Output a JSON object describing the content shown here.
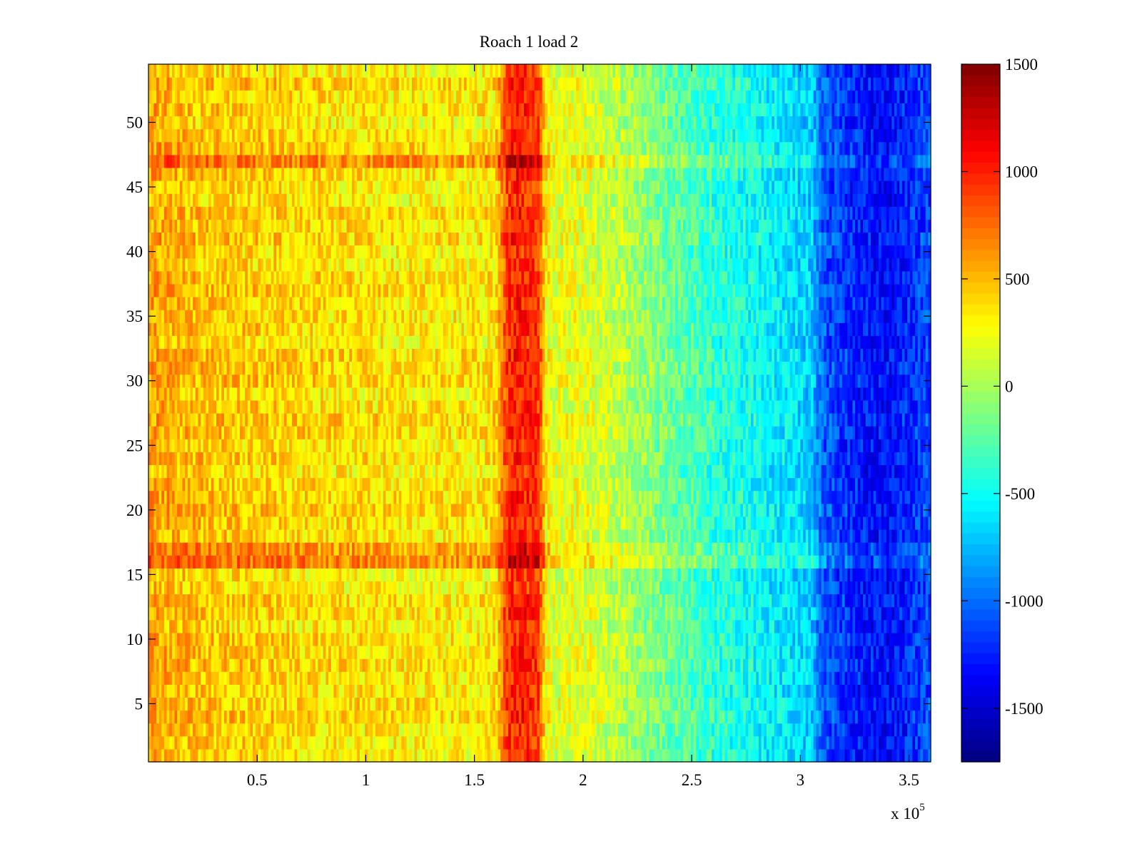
{
  "chart_data": {
    "type": "heatmap",
    "title": "Roach 1 load 2",
    "xlabel": "",
    "ylabel": "",
    "x_multiplier_label": {
      "base": "x 10",
      "exponent": "5"
    },
    "xlim": [
      0.0,
      3.6
    ],
    "ylim": [
      0.5,
      54.5
    ],
    "x_ticks": [
      0.5,
      1,
      1.5,
      2,
      2.5,
      3,
      3.5
    ],
    "x_tick_labels": [
      "0.5",
      "1",
      "1.5",
      "2",
      "2.5",
      "3",
      "3.5"
    ],
    "y_ticks": [
      5,
      10,
      15,
      20,
      25,
      30,
      35,
      40,
      45,
      50
    ],
    "y_tick_labels": [
      "5",
      "10",
      "15",
      "20",
      "25",
      "30",
      "35",
      "40",
      "45",
      "50"
    ],
    "rows": 54,
    "colormap": "jet",
    "clim": [
      -1750,
      1500
    ],
    "colorbar": {
      "ticks": [
        1500,
        1000,
        500,
        0,
        -500,
        -1000,
        -1500
      ],
      "tick_labels": [
        "1500",
        "1000",
        "500",
        "0",
        "-500",
        "-1000",
        "-1500"
      ],
      "levels": 64
    },
    "column_profile": {
      "x": [
        0.0,
        0.25,
        0.5,
        0.75,
        1.0,
        1.25,
        1.5,
        1.6,
        1.63,
        1.66,
        1.7,
        1.75,
        1.8,
        1.83,
        1.86,
        1.95,
        2.05,
        2.2,
        2.4,
        2.6,
        2.8,
        2.95,
        3.05,
        3.1,
        3.2,
        3.3,
        3.4,
        3.5,
        3.6
      ],
      "mean_value": [
        560,
        460,
        420,
        380,
        360,
        330,
        320,
        360,
        760,
        950,
        1000,
        980,
        880,
        300,
        180,
        220,
        160,
        20,
        -200,
        -380,
        -520,
        -620,
        -680,
        -1050,
        -1180,
        -1280,
        -1330,
        -1220,
        -1100
      ]
    },
    "row_offsets": [
      {
        "row": 16,
        "offset": 280
      },
      {
        "row": 17,
        "offset": 160
      },
      {
        "row": 47,
        "offset": 260
      },
      {
        "row": 48,
        "offset": 120
      },
      {
        "row": 1,
        "offset": -60
      },
      {
        "row": 2,
        "offset": -40
      }
    ],
    "noise_amplitude": 230
  }
}
